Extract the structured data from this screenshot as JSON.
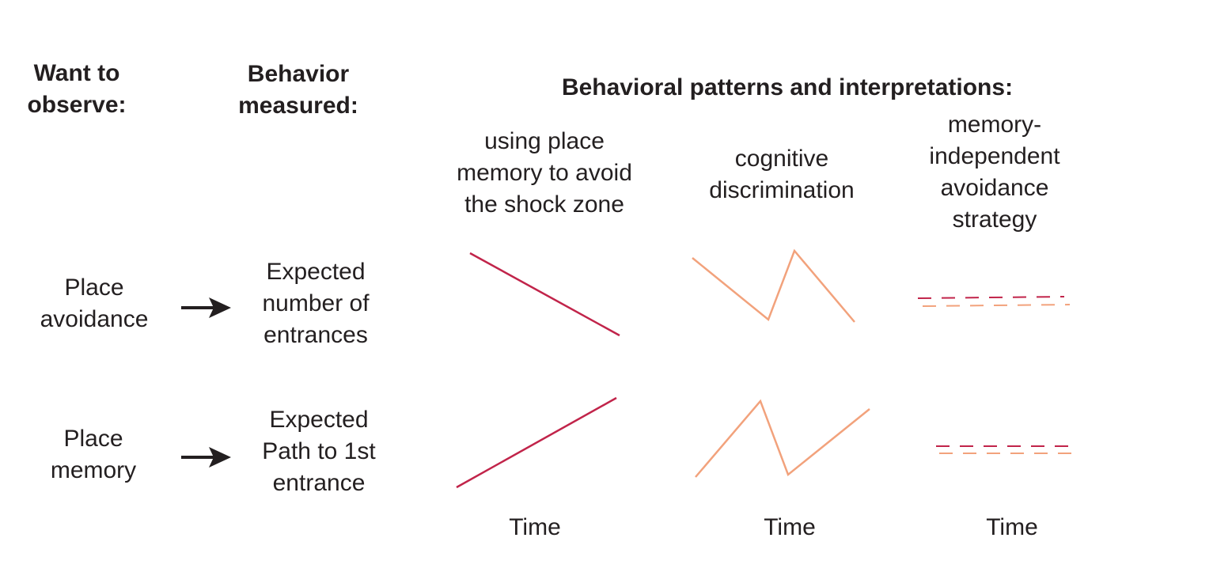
{
  "headers": {
    "want_to_observe": [
      "Want to",
      "observe:"
    ],
    "behavior_measured": [
      "Behavior",
      "measured:"
    ],
    "patterns": "Behavioral patterns and interpretations:"
  },
  "columns": [
    {
      "label": [
        "using place",
        "memory to avoid",
        "the shock zone"
      ],
      "xlabel": "Time"
    },
    {
      "label": [
        "cognitive",
        "discrimination"
      ],
      "xlabel": "Time"
    },
    {
      "label": [
        "memory-",
        "independent",
        "avoidance",
        "strategy"
      ],
      "xlabel": "Time"
    }
  ],
  "rows": [
    {
      "observe": [
        "Place",
        "avoidance"
      ],
      "measure": [
        "Expected",
        "number of",
        "entrances"
      ]
    },
    {
      "observe": [
        "Place",
        "memory"
      ],
      "measure": [
        "Expected",
        "Path to 1st",
        "entrance"
      ]
    }
  ],
  "colors": {
    "text": "#231f20",
    "crimson": "#c1244a",
    "salmon": "#f2a27c"
  }
}
